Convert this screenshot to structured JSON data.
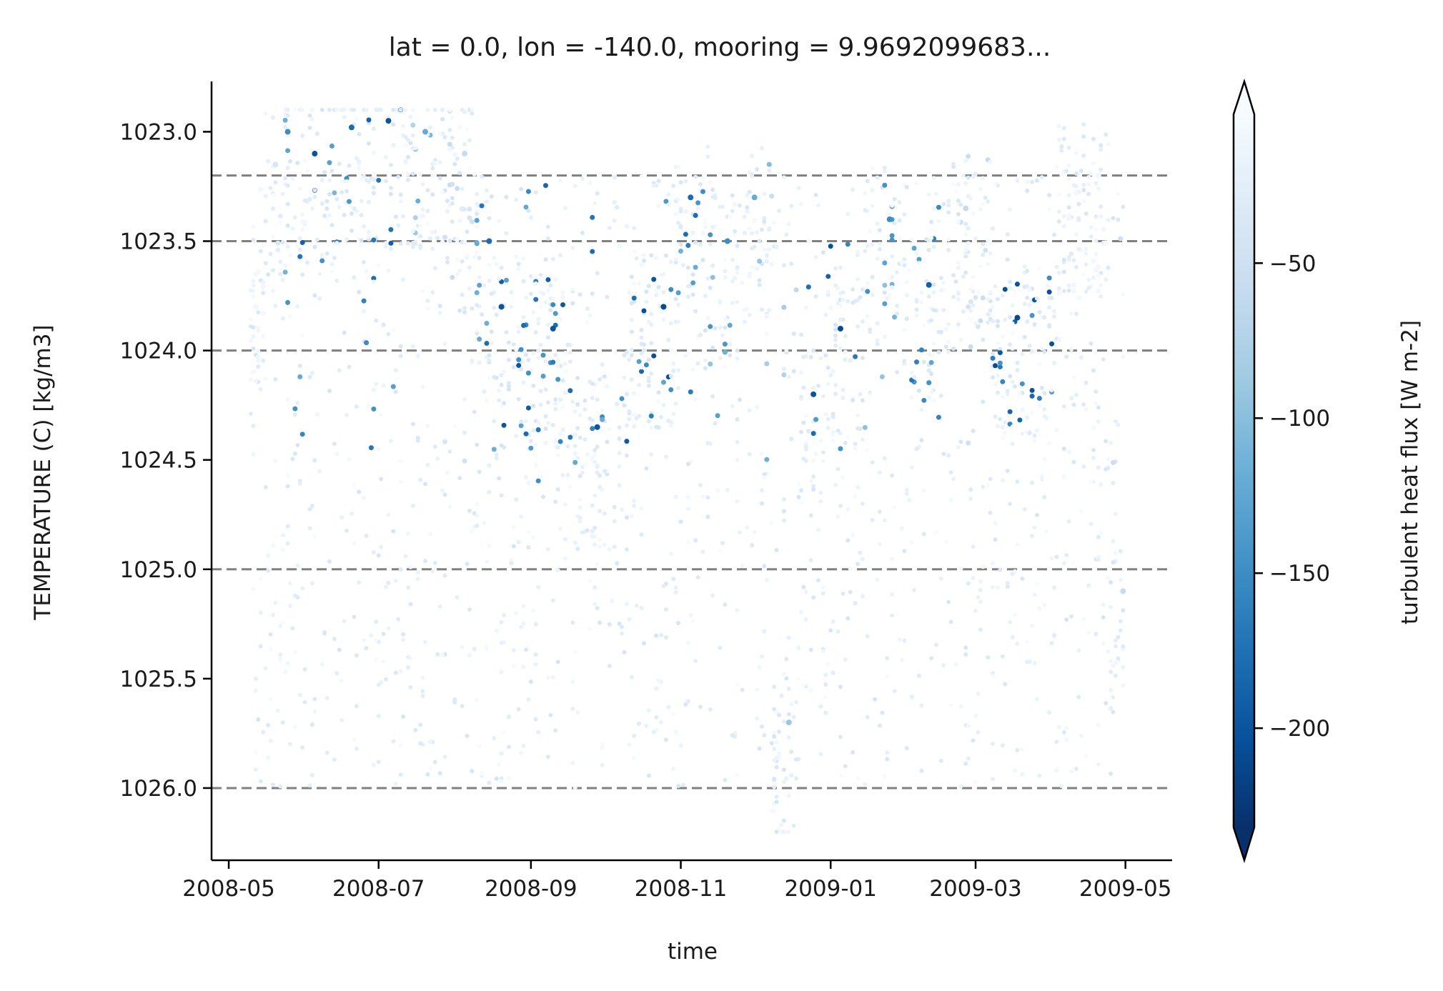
{
  "chart_data": {
    "type": "scatter",
    "title": "lat = 0.0, lon = -140.0, mooring = 9.9692099683...",
    "xlabel": "time",
    "ylabel": "TEMPERATURE (C) [kg/m3]",
    "x_ticks": [
      "2008-05",
      "2008-07",
      "2008-09",
      "2008-11",
      "2009-01",
      "2009-03",
      "2009-05"
    ],
    "y_ticks": [
      "1023.0",
      "1023.5",
      "1024.0",
      "1024.5",
      "1025.0",
      "1025.5",
      "1026.0"
    ],
    "x_range": [
      "2008-04-24",
      "2009-05-20"
    ],
    "ylim": [
      1026.33,
      1022.77
    ],
    "y_inverted": true,
    "reference_lines": [
      1023.2,
      1023.5,
      1024.0,
      1025.0,
      1026.0
    ],
    "colorbar": {
      "label": "turbulent heat flux [W m-2]",
      "ticks": [
        "−50",
        "−100",
        "−150",
        "−200"
      ],
      "tick_values": [
        -50,
        -100,
        -150,
        -200
      ],
      "range": [
        -232,
        -2
      ],
      "extend": "both",
      "colormap": "Blues_r"
    },
    "series": [
      {
        "description_of_cloud": "dense scatter of density vs time colored by heat flux",
        "points_sampled": [
          {
            "x": "2008-05-12",
            "y": 1023.8,
            "c": -10
          },
          {
            "x": "2008-05-20",
            "y": 1023.15,
            "c": -40
          },
          {
            "x": "2008-05-25",
            "y": 1023.0,
            "c": -150
          },
          {
            "x": "2008-06-05",
            "y": 1023.1,
            "c": -200
          },
          {
            "x": "2008-06-20",
            "y": 1022.98,
            "c": -180
          },
          {
            "x": "2008-07-05",
            "y": 1022.95,
            "c": -200
          },
          {
            "x": "2008-07-20",
            "y": 1023.0,
            "c": -120
          },
          {
            "x": "2008-08-05",
            "y": 1023.1,
            "c": -60
          },
          {
            "x": "2008-08-15",
            "y": 1023.5,
            "c": -180
          },
          {
            "x": "2008-08-20",
            "y": 1023.8,
            "c": -200
          },
          {
            "x": "2008-09-10",
            "y": 1023.9,
            "c": -200
          },
          {
            "x": "2008-09-28",
            "y": 1024.35,
            "c": -200
          },
          {
            "x": "2008-10-25",
            "y": 1023.8,
            "c": -210
          },
          {
            "x": "2008-11-05",
            "y": 1023.3,
            "c": -180
          },
          {
            "x": "2008-11-20",
            "y": 1023.5,
            "c": -150
          },
          {
            "x": "2008-12-01",
            "y": 1023.3,
            "c": -120
          },
          {
            "x": "2008-12-15",
            "y": 1025.7,
            "c": -90
          },
          {
            "x": "2008-12-25",
            "y": 1024.2,
            "c": -200
          },
          {
            "x": "2009-01-05",
            "y": 1023.9,
            "c": -210
          },
          {
            "x": "2009-01-25",
            "y": 1023.4,
            "c": -150
          },
          {
            "x": "2009-02-10",
            "y": 1023.7,
            "c": -190
          },
          {
            "x": "2009-02-25",
            "y": 1023.35,
            "c": -60
          },
          {
            "x": "2009-03-18",
            "y": 1023.85,
            "c": -210
          },
          {
            "x": "2009-04-20",
            "y": 1023.2,
            "c": -10
          },
          {
            "x": "2009-04-30",
            "y": 1025.1,
            "c": -60
          }
        ]
      }
    ]
  }
}
